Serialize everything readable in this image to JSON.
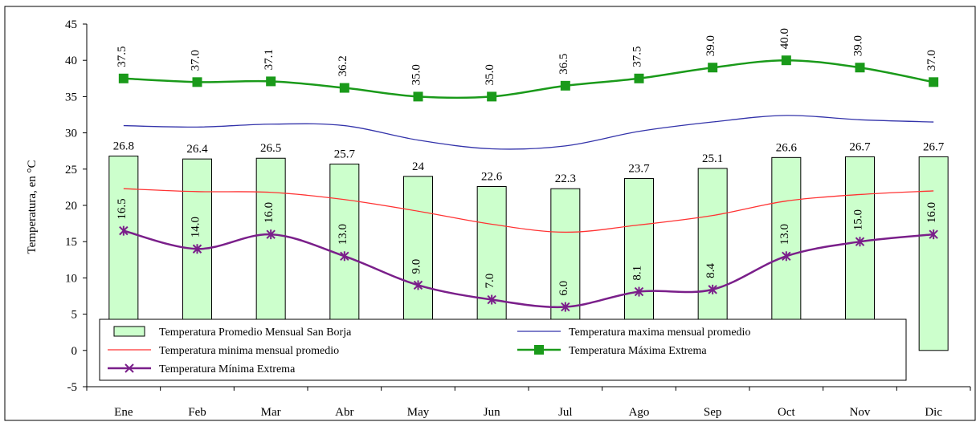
{
  "chart_data": {
    "type": "bar",
    "categories": [
      "Ene",
      "Feb",
      "Mar",
      "Abr",
      "May",
      "Jun",
      "Jul",
      "Ago",
      "Sep",
      "Oct",
      "Nov",
      "Dic"
    ],
    "ylabel": "Temperatura, en °C",
    "ylim": [
      -5,
      45
    ],
    "yticks": [
      -5,
      0,
      5,
      10,
      15,
      20,
      25,
      30,
      35,
      40,
      45
    ],
    "grid": false,
    "legend_position": "bottom-inside",
    "series": [
      {
        "name": "Temperatura Promedio Mensual San Borja",
        "kind": "bar",
        "color": "#ccffcc",
        "values": [
          26.8,
          26.4,
          26.5,
          25.7,
          24,
          22.6,
          22.3,
          23.7,
          25.1,
          26.6,
          26.7,
          26.7
        ],
        "labels": [
          "26.8",
          "26.4",
          "26.5",
          "25.7",
          "24",
          "22.6",
          "22.3",
          "23.7",
          "25.1",
          "26.6",
          "26.7",
          "26.7"
        ]
      },
      {
        "name": "Temperatura maxima mensual promedio",
        "kind": "line",
        "color": "#3333aa",
        "values": [
          31,
          30.8,
          31.2,
          31,
          29,
          27.8,
          28.2,
          30.2,
          31.5,
          32.4,
          31.8,
          31.5
        ]
      },
      {
        "name": "Temperatura minima mensual promedio",
        "kind": "line",
        "color": "#ff3333",
        "values": [
          22.3,
          21.9,
          21.8,
          20.8,
          19.2,
          17.4,
          16.3,
          17.3,
          18.6,
          20.6,
          21.5,
          22
        ]
      },
      {
        "name": "Temperatura Máxima Extrema",
        "kind": "line-square",
        "color": "#1a9a1a",
        "values": [
          37.5,
          37.0,
          37.1,
          36.2,
          35.0,
          35.0,
          36.5,
          37.5,
          39.0,
          40.0,
          39.0,
          37.0
        ],
        "labels": [
          "37.5",
          "37.0",
          "37.1",
          "36.2",
          "35.0",
          "35.0",
          "36.5",
          "37.5",
          "39.0",
          "40.0",
          "39.0",
          "37.0"
        ]
      },
      {
        "name": "Temperatura Mínima Extrema",
        "kind": "line-star",
        "color": "#7a1f8a",
        "values": [
          16.5,
          14.0,
          16.0,
          13.0,
          9.0,
          7.0,
          6.0,
          8.1,
          8.4,
          13.0,
          15.0,
          16.0
        ],
        "labels": [
          "16.5",
          "14.0",
          "16.0",
          "13.0",
          "9.0",
          "7.0",
          "6.0",
          "8.1",
          "8.4",
          "13.0",
          "15.0",
          "16.0"
        ]
      }
    ]
  }
}
